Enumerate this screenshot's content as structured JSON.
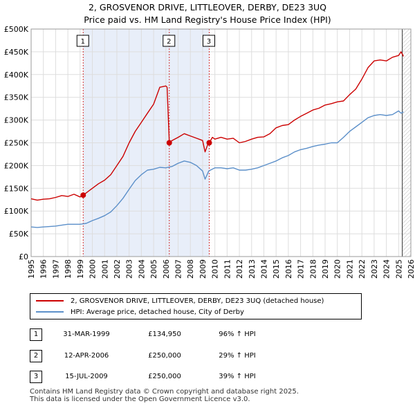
{
  "chart_data": {
    "type": "line",
    "title": "2, GROSVENOR DRIVE, LITTLEOVER, DERBY, DE23 3UQ",
    "subtitle": "Price paid vs. HM Land Registry's House Price Index (HPI)",
    "xlim": [
      1995,
      2026
    ],
    "ylim": [
      0,
      500000
    ],
    "y_ticks": [
      {
        "value": 0,
        "label": "£0"
      },
      {
        "value": 50000,
        "label": "£50K"
      },
      {
        "value": 100000,
        "label": "£100K"
      },
      {
        "value": 150000,
        "label": "£150K"
      },
      {
        "value": 200000,
        "label": "£200K"
      },
      {
        "value": 250000,
        "label": "£250K"
      },
      {
        "value": 300000,
        "label": "£300K"
      },
      {
        "value": 350000,
        "label": "£350K"
      },
      {
        "value": 400000,
        "label": "£400K"
      },
      {
        "value": 450000,
        "label": "£450K"
      },
      {
        "value": 500000,
        "label": "£500K"
      }
    ],
    "x_ticks": [
      "1995",
      "1996",
      "1997",
      "1998",
      "1999",
      "2000",
      "2001",
      "2002",
      "2003",
      "2004",
      "2005",
      "2006",
      "2007",
      "2008",
      "2009",
      "2010",
      "2011",
      "2012",
      "2013",
      "2014",
      "2015",
      "2016",
      "2017",
      "2018",
      "2019",
      "2020",
      "2021",
      "2022",
      "2023",
      "2024",
      "2025",
      "2026"
    ],
    "shaded_region": [
      1999.25,
      2009.54
    ],
    "hatched_region_start": 2025.3,
    "colors": {
      "property": "#cc0000",
      "hpi": "#5b8fc9",
      "shade": "#e8eef9",
      "marker": "#cc0000"
    },
    "series": [
      {
        "name": "2, GROSVENOR DRIVE, LITTLEOVER, DERBY, DE23 3UQ (detached house)",
        "color": "#cc0000",
        "x": [
          1995.0,
          1995.5,
          1996.0,
          1996.5,
          1997.0,
          1997.5,
          1998.0,
          1998.5,
          1999.0,
          1999.25,
          1999.5,
          2000.0,
          2000.5,
          2001.0,
          2001.5,
          2002.0,
          2002.5,
          2003.0,
          2003.5,
          2004.0,
          2004.5,
          2005.0,
          2005.5,
          2006.0,
          2006.1,
          2006.28,
          2006.5,
          2007.0,
          2007.5,
          2008.0,
          2008.5,
          2009.0,
          2009.2,
          2009.4,
          2009.54,
          2009.8,
          2010.0,
          2010.5,
          2011.0,
          2011.5,
          2012.0,
          2012.5,
          2013.0,
          2013.5,
          2014.0,
          2014.5,
          2015.0,
          2015.5,
          2016.0,
          2016.5,
          2017.0,
          2017.5,
          2018.0,
          2018.5,
          2019.0,
          2019.5,
          2020.0,
          2020.5,
          2021.0,
          2021.5,
          2022.0,
          2022.5,
          2023.0,
          2023.5,
          2024.0,
          2024.5,
          2025.0,
          2025.2,
          2025.4
        ],
        "values": [
          127000,
          124000,
          126000,
          127000,
          130000,
          134000,
          132000,
          137000,
          131000,
          134950,
          140000,
          150000,
          160000,
          168000,
          180000,
          200000,
          220000,
          250000,
          275000,
          295000,
          315000,
          335000,
          372000,
          375000,
          372000,
          250000,
          255000,
          262000,
          270000,
          265000,
          260000,
          255000,
          230000,
          245000,
          250000,
          262000,
          258000,
          262000,
          258000,
          260000,
          250000,
          253000,
          258000,
          262000,
          263000,
          270000,
          283000,
          288000,
          290000,
          300000,
          308000,
          315000,
          322000,
          326000,
          333000,
          336000,
          340000,
          342000,
          356000,
          368000,
          390000,
          415000,
          430000,
          432000,
          430000,
          438000,
          442000,
          450000,
          440000
        ]
      },
      {
        "name": "HPI: Average price, detached house, City of Derby",
        "color": "#5b8fc9",
        "x": [
          1995.0,
          1995.5,
          1996.0,
          1996.5,
          1997.0,
          1997.5,
          1998.0,
          1998.5,
          1999.0,
          1999.5,
          2000.0,
          2000.5,
          2001.0,
          2001.5,
          2002.0,
          2002.5,
          2003.0,
          2003.5,
          2004.0,
          2004.5,
          2005.0,
          2005.5,
          2006.0,
          2006.5,
          2007.0,
          2007.5,
          2008.0,
          2008.5,
          2009.0,
          2009.2,
          2009.5,
          2010.0,
          2010.5,
          2011.0,
          2011.5,
          2012.0,
          2012.5,
          2013.0,
          2013.5,
          2014.0,
          2014.5,
          2015.0,
          2015.5,
          2016.0,
          2016.5,
          2017.0,
          2017.5,
          2018.0,
          2018.5,
          2019.0,
          2019.5,
          2020.0,
          2020.5,
          2021.0,
          2021.5,
          2022.0,
          2022.5,
          2023.0,
          2023.5,
          2024.0,
          2024.5,
          2025.0,
          2025.2,
          2025.4
        ],
        "values": [
          65000,
          64000,
          65000,
          66000,
          67000,
          69000,
          71000,
          71000,
          71000,
          73000,
          79000,
          84000,
          90000,
          98000,
          112000,
          128000,
          148000,
          167000,
          180000,
          190000,
          192000,
          196000,
          195000,
          198000,
          205000,
          210000,
          207000,
          200000,
          188000,
          170000,
          188000,
          195000,
          195000,
          193000,
          195000,
          190000,
          190000,
          192000,
          195000,
          200000,
          205000,
          210000,
          217000,
          222000,
          230000,
          235000,
          238000,
          242000,
          245000,
          247000,
          250000,
          250000,
          262000,
          275000,
          285000,
          295000,
          305000,
          310000,
          312000,
          310000,
          312000,
          320000,
          315000,
          318000
        ]
      }
    ],
    "sales": [
      {
        "label": "1",
        "x": 1999.25,
        "value": 134950
      },
      {
        "label": "2",
        "x": 2006.28,
        "value": 250000
      },
      {
        "label": "3",
        "x": 2009.54,
        "value": 250000
      }
    ]
  },
  "legend": {
    "property_label": "2, GROSVENOR DRIVE, LITTLEOVER, DERBY, DE23 3UQ (detached house)",
    "hpi_label": "HPI: Average price, detached house, City of Derby"
  },
  "sales_table": [
    {
      "num": "1",
      "date": "31-MAR-1999",
      "price": "£134,950",
      "hpi": "96% ↑ HPI"
    },
    {
      "num": "2",
      "date": "12-APR-2006",
      "price": "£250,000",
      "hpi": "29% ↑ HPI"
    },
    {
      "num": "3",
      "date": "15-JUL-2009",
      "price": "£250,000",
      "hpi": "39% ↑ HPI"
    }
  ],
  "footer": {
    "line1": "Contains HM Land Registry data © Crown copyright and database right 2025.",
    "line2": "This data is licensed under the Open Government Licence v3.0."
  }
}
